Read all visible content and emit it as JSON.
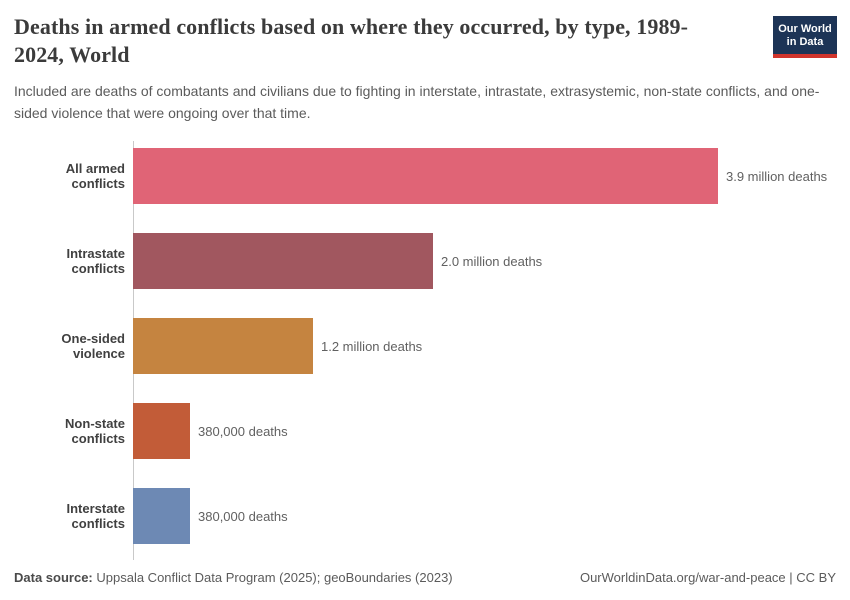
{
  "header": {
    "title": "Deaths in armed conflicts based on where they occurred, by type, 1989-2024, World",
    "subtitle": "Included are deaths of combatants and civilians due to fighting in interstate, intrastate, extrasystemic, non-state conflicts, and one-sided violence that were ongoing over that time.",
    "logo": {
      "line1": "Our World",
      "line2": "in Data",
      "bg_color": "#1d3456",
      "accent_color": "#d0342c"
    }
  },
  "chart_data": {
    "type": "bar",
    "orientation": "horizontal",
    "title": "Deaths in armed conflicts based on where they occurred, by type, 1989-2024, World",
    "categories": [
      "All armed conflicts",
      "Intrastate conflicts",
      "One-sided violence",
      "Non-state conflicts",
      "Interstate conflicts"
    ],
    "values": [
      3900000,
      2000000,
      1200000,
      380000,
      380000
    ],
    "value_labels": [
      "3.9 million deaths",
      "2.0 million deaths",
      "1.2 million deaths",
      "380,000 deaths",
      "380,000 deaths"
    ],
    "colors": [
      "#e06476",
      "#a1575f",
      "#c58440",
      "#c25c38",
      "#6d89b4"
    ],
    "xlim": [
      0,
      3900000
    ],
    "unit": "deaths",
    "grid": false,
    "legend": "none",
    "axis_line_color": "#c9c9c9"
  },
  "footer": {
    "datasource_label": "Data source:",
    "datasource_value": "Uppsala Conflict Data Program (2025); geoBoundaries (2023)",
    "attribution": "OurWorldinData.org/war-and-peace | CC BY"
  }
}
